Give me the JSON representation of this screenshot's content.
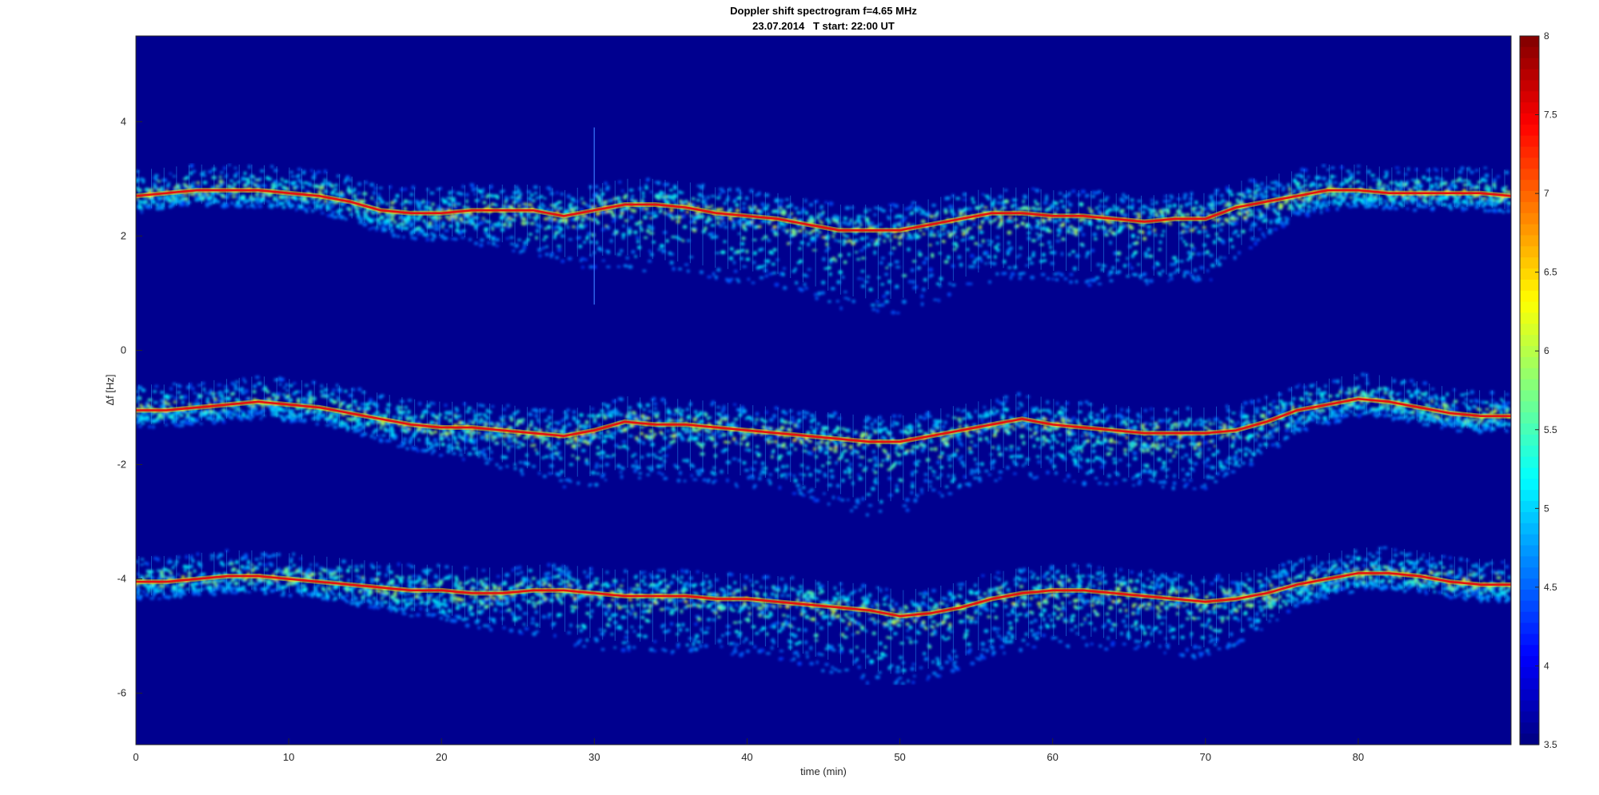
{
  "chart_data": {
    "type": "heatmap",
    "title": "Doppler shift spectrogram f=4.65 MHz",
    "subtitle": "23.07.2014   T start: 22:00 UT",
    "xlabel": "time (min)",
    "ylabel": "Δf [Hz]",
    "xlim": [
      0,
      90
    ],
    "ylim": [
      -6.9,
      5.5
    ],
    "xticks": [
      0,
      10,
      20,
      30,
      40,
      50,
      60,
      70,
      80
    ],
    "yticks": [
      -6,
      -4,
      -2,
      0,
      2,
      4
    ],
    "colorbar": {
      "colormap": "jet",
      "clim": [
        3.5,
        8
      ],
      "ticks": [
        "3.5",
        "4",
        "4.5",
        "5",
        "5.5",
        "6",
        "6.5",
        "7",
        "7.5",
        "8"
      ]
    },
    "series": [
      {
        "x": [
          0,
          2,
          4,
          6,
          8,
          10,
          12,
          14,
          16,
          18,
          20,
          22,
          24,
          26,
          28,
          30,
          32,
          34,
          36,
          38,
          40,
          42,
          44,
          46,
          48,
          50,
          52,
          54,
          56,
          58,
          60,
          62,
          64,
          66,
          68,
          70,
          72,
          74,
          76,
          78,
          80,
          82,
          84,
          86,
          88,
          90
        ],
        "y": [
          2.7,
          2.75,
          2.8,
          2.8,
          2.8,
          2.75,
          2.7,
          2.6,
          2.45,
          2.4,
          2.4,
          2.45,
          2.45,
          2.45,
          2.35,
          2.45,
          2.55,
          2.55,
          2.5,
          2.4,
          2.35,
          2.3,
          2.2,
          2.1,
          2.1,
          2.1,
          2.2,
          2.3,
          2.4,
          2.4,
          2.35,
          2.35,
          2.3,
          2.25,
          2.3,
          2.3,
          2.5,
          2.6,
          2.7,
          2.8,
          2.8,
          2.75,
          2.75,
          2.75,
          2.75,
          2.7
        ],
        "spread_below": [
          0.3,
          0.3,
          0.3,
          0.3,
          0.3,
          0.3,
          0.3,
          0.35,
          0.4,
          0.45,
          0.5,
          0.6,
          0.7,
          0.8,
          0.9,
          1.0,
          1.1,
          1.2,
          1.2,
          1.2,
          1.2,
          1.2,
          1.3,
          1.4,
          1.5,
          1.5,
          1.4,
          1.3,
          1.2,
          1.2,
          1.2,
          1.2,
          1.2,
          1.2,
          1.2,
          1.2,
          0.9,
          0.6,
          0.4,
          0.35,
          0.3,
          0.3,
          0.3,
          0.3,
          0.3,
          0.3
        ]
      },
      {
        "x": [
          0,
          2,
          4,
          6,
          8,
          10,
          12,
          14,
          16,
          18,
          20,
          22,
          24,
          26,
          28,
          30,
          32,
          34,
          36,
          38,
          40,
          42,
          44,
          46,
          48,
          50,
          52,
          54,
          56,
          58,
          60,
          62,
          64,
          66,
          68,
          70,
          72,
          74,
          76,
          78,
          80,
          82,
          84,
          86,
          88,
          90
        ],
        "y": [
          -1.05,
          -1.05,
          -1.0,
          -0.95,
          -0.9,
          -0.95,
          -1.0,
          -1.1,
          -1.2,
          -1.3,
          -1.35,
          -1.35,
          -1.4,
          -1.45,
          -1.5,
          -1.4,
          -1.25,
          -1.3,
          -1.3,
          -1.35,
          -1.4,
          -1.45,
          -1.5,
          -1.55,
          -1.6,
          -1.6,
          -1.5,
          -1.4,
          -1.3,
          -1.2,
          -1.3,
          -1.35,
          -1.4,
          -1.45,
          -1.45,
          -1.45,
          -1.4,
          -1.25,
          -1.05,
          -0.95,
          -0.85,
          -0.9,
          -1.0,
          -1.1,
          -1.15,
          -1.15
        ],
        "spread_below": [
          0.3,
          0.3,
          0.3,
          0.3,
          0.3,
          0.3,
          0.3,
          0.35,
          0.4,
          0.45,
          0.5,
          0.6,
          0.7,
          0.8,
          0.9,
          1.0,
          1.0,
          1.0,
          1.0,
          1.0,
          1.0,
          1.0,
          1.1,
          1.2,
          1.3,
          1.3,
          1.2,
          1.1,
          1.0,
          1.0,
          1.0,
          1.0,
          1.0,
          1.0,
          1.0,
          1.0,
          0.8,
          0.6,
          0.4,
          0.35,
          0.3,
          0.3,
          0.3,
          0.3,
          0.3,
          0.3
        ]
      },
      {
        "x": [
          0,
          2,
          4,
          6,
          8,
          10,
          12,
          14,
          16,
          18,
          20,
          22,
          24,
          26,
          28,
          30,
          32,
          34,
          36,
          38,
          40,
          42,
          44,
          46,
          48,
          50,
          52,
          54,
          56,
          58,
          60,
          62,
          64,
          66,
          68,
          70,
          72,
          74,
          76,
          78,
          80,
          82,
          84,
          86,
          88,
          90
        ],
        "y": [
          -4.05,
          -4.05,
          -4.0,
          -3.95,
          -3.95,
          -4.0,
          -4.05,
          -4.1,
          -4.15,
          -4.2,
          -4.2,
          -4.25,
          -4.25,
          -4.2,
          -4.2,
          -4.25,
          -4.3,
          -4.3,
          -4.3,
          -4.35,
          -4.35,
          -4.4,
          -4.45,
          -4.5,
          -4.55,
          -4.65,
          -4.6,
          -4.5,
          -4.35,
          -4.25,
          -4.2,
          -4.2,
          -4.25,
          -4.3,
          -4.35,
          -4.4,
          -4.35,
          -4.25,
          -4.1,
          -4.0,
          -3.9,
          -3.9,
          -3.95,
          -4.05,
          -4.1,
          -4.1
        ],
        "spread_below": [
          0.3,
          0.3,
          0.3,
          0.3,
          0.3,
          0.3,
          0.3,
          0.35,
          0.4,
          0.45,
          0.5,
          0.6,
          0.7,
          0.8,
          0.9,
          1.0,
          1.0,
          1.0,
          1.0,
          1.0,
          1.0,
          1.0,
          1.1,
          1.2,
          1.3,
          1.3,
          1.2,
          1.1,
          1.0,
          1.0,
          1.0,
          1.0,
          1.0,
          1.0,
          1.0,
          1.0,
          0.8,
          0.6,
          0.4,
          0.35,
          0.3,
          0.3,
          0.3,
          0.3,
          0.3,
          0.3
        ]
      }
    ],
    "grid": false,
    "legend": "none"
  }
}
